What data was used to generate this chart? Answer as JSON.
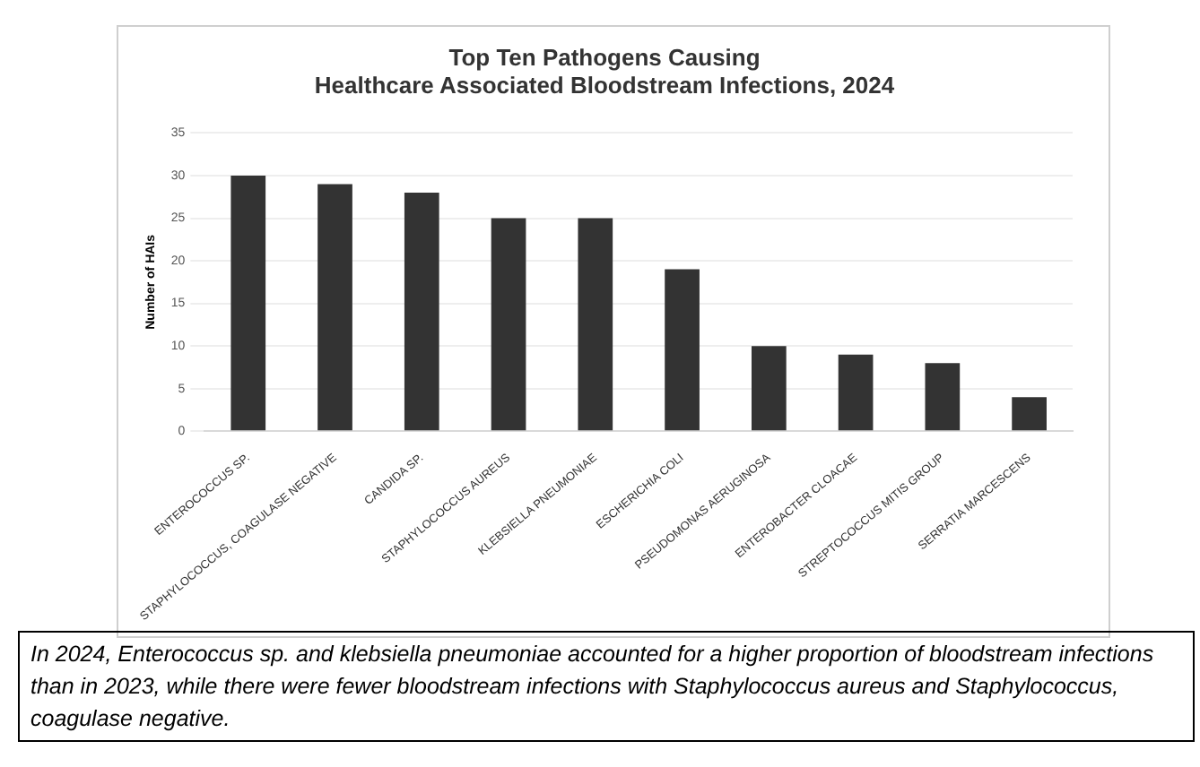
{
  "chart_data": {
    "type": "bar",
    "title": "Top Ten Pathogens Causing\nHealthcare Associated Bloodstream Infections, 2024",
    "ylabel": "Number of HAIs",
    "categories": [
      "ENTEROCOCCUS SP.",
      "STAPHYLOCOCCUS, COAGULASE NEGATIVE",
      "CANDIDA SP.",
      "STAPHYLOCOCCUS AUREUS",
      "KLEBSIELLA PNEUMONIAE",
      "ESCHERICHIA COLI",
      "PSEUDOMONAS AERUGINOSA",
      "ENTEROBACTER CLOACAE",
      "STREPTOCOCCUS MITIS GROUP",
      "SERRATIA MARCESCENS"
    ],
    "values": [
      30,
      29,
      28,
      25,
      25,
      19,
      10,
      9,
      8,
      4
    ],
    "color": "#333333",
    "ylim": [
      0,
      35
    ],
    "yticks": [
      0,
      5,
      10,
      15,
      20,
      25,
      30,
      35
    ],
    "grid": "y",
    "annotations": [
      "In 2024, Enterococcus sp. and klebsiella pneumoniae accounted for a higher proportion of bloodstream infections than in 2023, while there were fewer bloodstream infections with Staphylococcus aureus and Staphylococcus, coagulase negative."
    ]
  }
}
